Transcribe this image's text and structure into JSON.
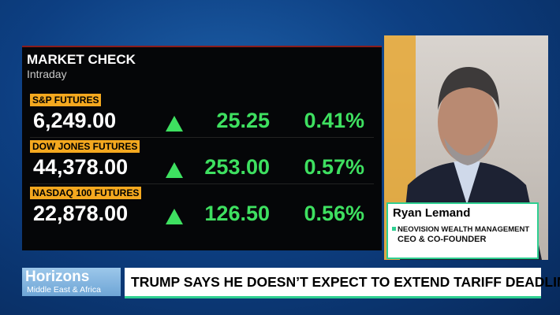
{
  "market_check": {
    "title": "MARKET CHECK",
    "subtitle": "Intraday",
    "rows": [
      {
        "name": "S&P FUTURES",
        "price": "6,249.00",
        "change": "25.25",
        "percent": "0.41%"
      },
      {
        "name": "DOW JONES FUTURES",
        "price": "44,378.00",
        "change": "253.00",
        "percent": "0.57%"
      },
      {
        "name": "NASDAQ 100 FUTURES",
        "price": "22,878.00",
        "change": "126.50",
        "percent": "0.56%"
      }
    ]
  },
  "guest": {
    "name": "Ryan Lemand",
    "company": "NEOVISION WEALTH MANAGEMENT",
    "role": "CEO & CO-FOUNDER"
  },
  "show": {
    "name": "Horizons",
    "region": "Middle East & Africa"
  },
  "headline": "TRUMP SAYS HE DOESN’T EXPECT TO EXTEND TARIFF DEADLINE"
}
